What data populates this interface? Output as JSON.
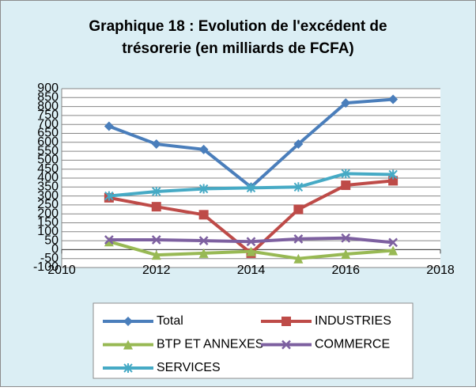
{
  "chart_data": {
    "type": "line",
    "title": "Graphique 18 : Evolution de l'excédent de trésorerie (en milliards de FCFA)",
    "x": [
      2011,
      2012,
      2013,
      2014,
      2015,
      2016,
      2017
    ],
    "series": [
      {
        "name": "Total",
        "color": "#4a7ebb",
        "marker": "diamond",
        "values": [
          690,
          590,
          560,
          350,
          590,
          820,
          840
        ]
      },
      {
        "name": "INDUSTRIES",
        "color": "#be4b48",
        "marker": "square",
        "values": [
          290,
          240,
          195,
          -20,
          225,
          360,
          385
        ]
      },
      {
        "name": "BTP ET ANNEXES",
        "color": "#98b954",
        "marker": "triangle",
        "values": [
          45,
          -30,
          -20,
          -10,
          -50,
          -25,
          -5
        ]
      },
      {
        "name": "COMMERCE",
        "color": "#7d60a0",
        "marker": "x",
        "values": [
          55,
          55,
          50,
          45,
          60,
          65,
          40
        ]
      },
      {
        "name": "SERVICES",
        "color": "#46aac5",
        "marker": "star",
        "values": [
          300,
          325,
          340,
          345,
          350,
          425,
          420
        ]
      }
    ],
    "xlim": [
      2010,
      2018
    ],
    "xticks": [
      2010,
      2012,
      2014,
      2016,
      2018
    ],
    "ylim": [
      -100,
      900
    ],
    "yticks": [
      -100,
      -50,
      0,
      50,
      100,
      150,
      200,
      250,
      300,
      350,
      400,
      450,
      500,
      550,
      600,
      650,
      700,
      750,
      800,
      850,
      900
    ],
    "grid": true,
    "legend": "bottom"
  }
}
